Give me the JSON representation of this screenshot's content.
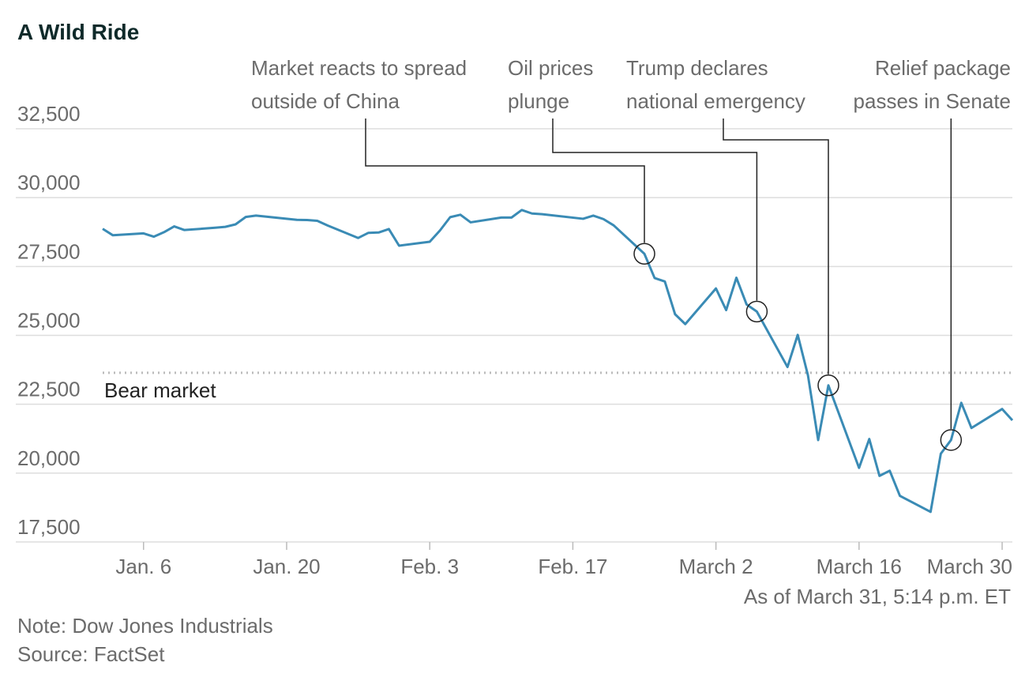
{
  "chart_data": {
    "type": "line",
    "title": "A Wild Ride",
    "x": [
      2,
      3,
      6,
      7,
      8,
      9,
      10,
      13,
      14,
      15,
      16,
      17,
      21,
      22,
      23,
      24,
      27,
      28,
      29,
      30,
      31,
      34,
      35,
      36,
      37,
      38,
      41,
      42,
      43,
      44,
      45,
      49,
      50,
      51,
      52,
      55,
      56,
      57,
      58,
      59,
      62,
      63,
      64,
      65,
      66,
      69,
      70,
      71,
      72,
      73,
      76,
      77,
      78,
      79,
      80,
      83,
      84,
      85,
      86,
      87,
      90,
      91
    ],
    "series": [
      {
        "name": "Dow Jones Industrials",
        "color": "#3a8bb5",
        "values": [
          28868,
          28634,
          28703,
          28583,
          28745,
          28957,
          28824,
          28907,
          28940,
          29030,
          29298,
          29348,
          29196,
          29186,
          29160,
          28990,
          28536,
          28723,
          28734,
          28859,
          28256,
          28400,
          28808,
          29291,
          29380,
          29103,
          29276,
          29277,
          29551,
          29424,
          29398,
          29232,
          29348,
          29220,
          28992,
          27961,
          27081,
          26957,
          25767,
          25409,
          26703,
          25917,
          27091,
          26121,
          25865,
          23851,
          25018,
          23553,
          21200,
          23186,
          20189,
          21237,
          19899,
          20087,
          19174,
          18592,
          20704,
          21201,
          22552,
          21637,
          22327,
          21917
        ]
      }
    ],
    "xlim": [
      2,
      91
    ],
    "xticks": [
      {
        "value": 6,
        "label": "Jan. 6"
      },
      {
        "value": 20,
        "label": "Jan. 20"
      },
      {
        "value": 34,
        "label": "Feb. 3"
      },
      {
        "value": 48,
        "label": "Feb. 17"
      },
      {
        "value": 62,
        "label": "March 2"
      },
      {
        "value": 76,
        "label": "March 16"
      },
      {
        "value": 90,
        "label": "March 30"
      }
    ],
    "ylim": [
      17500,
      32500
    ],
    "yticks": [
      {
        "value": 17500,
        "label": "17,500"
      },
      {
        "value": 20000,
        "label": "20,000"
      },
      {
        "value": 22500,
        "label": "22,500"
      },
      {
        "value": 25000,
        "label": "25,000"
      },
      {
        "value": 27500,
        "label": "27,500"
      },
      {
        "value": 30000,
        "label": "30,000"
      },
      {
        "value": 32500,
        "label": "32,500"
      }
    ],
    "grid": true,
    "reference_line": {
      "value": 23641,
      "label": "Bear market"
    },
    "annotations": [
      {
        "text": [
          "Market reacts to spread",
          "outside of China"
        ],
        "x": 55
      },
      {
        "text": [
          "Oil prices",
          "plunge"
        ],
        "x": 66
      },
      {
        "text": [
          "Trump declares",
          "national emergency"
        ],
        "x": 73
      },
      {
        "text": [
          "Relief package",
          "passes in Senate"
        ],
        "x": 85
      }
    ],
    "timestamp": "As of March 31, 5:14 p.m. ET",
    "note": "Note: Dow Jones Industrials",
    "source": "Source: FactSet"
  }
}
